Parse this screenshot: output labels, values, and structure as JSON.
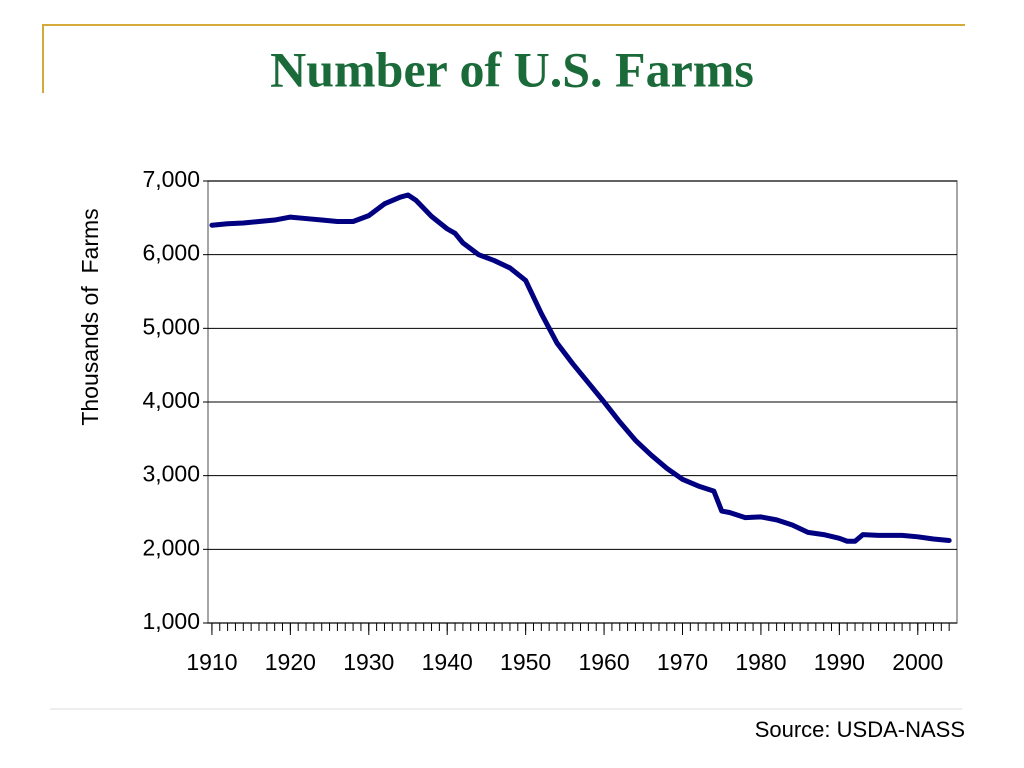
{
  "chart_data": {
    "type": "line",
    "title": "Number of U.S. Farms",
    "ylabel": "Thousands of  Farms",
    "source": "Source: USDA-NASS",
    "x": [
      1910,
      1912,
      1914,
      1916,
      1918,
      1920,
      1922,
      1924,
      1926,
      1928,
      1930,
      1932,
      1934,
      1935,
      1936,
      1938,
      1940,
      1941,
      1942,
      1944,
      1946,
      1948,
      1950,
      1952,
      1954,
      1956,
      1958,
      1960,
      1962,
      1964,
      1966,
      1968,
      1970,
      1972,
      1974,
      1975,
      1976,
      1978,
      1980,
      1982,
      1984,
      1986,
      1988,
      1990,
      1991,
      1992,
      1993,
      1995,
      1998,
      2000,
      2002,
      2004
    ],
    "series": [
      {
        "name": "Farms",
        "color": "#000080",
        "values": [
          6400,
          6420,
          6430,
          6450,
          6470,
          6510,
          6490,
          6470,
          6450,
          6450,
          6530,
          6690,
          6780,
          6810,
          6740,
          6520,
          6350,
          6290,
          6160,
          6000,
          5920,
          5820,
          5650,
          5200,
          4800,
          4520,
          4260,
          4000,
          3730,
          3480,
          3280,
          3100,
          2950,
          2860,
          2790,
          2520,
          2500,
          2430,
          2440,
          2400,
          2330,
          2230,
          2200,
          2150,
          2110,
          2110,
          2200,
          2190,
          2190,
          2170,
          2140,
          2120
        ]
      }
    ],
    "xlim": [
      1909.5,
      2005
    ],
    "xticks": [
      1910,
      1920,
      1930,
      1940,
      1950,
      1960,
      1970,
      1980,
      1990,
      2000
    ],
    "minor_xticks": [
      1910,
      1911,
      1912,
      1913,
      1914,
      1915,
      1916,
      1917,
      1918,
      1919,
      1920,
      1921,
      1922,
      1923,
      1924,
      1925,
      1926,
      1927,
      1928,
      1929,
      1930,
      1931,
      1932,
      1933,
      1934,
      1935,
      1936,
      1937,
      1938,
      1939,
      1940,
      1941,
      1942,
      1943,
      1944,
      1945,
      1946,
      1947,
      1948,
      1949,
      1950,
      1951,
      1952,
      1953,
      1954,
      1955,
      1956,
      1957,
      1958,
      1959,
      1960,
      1961,
      1962,
      1963,
      1964,
      1965,
      1966,
      1967,
      1968,
      1969,
      1970,
      1971,
      1972,
      1973,
      1974,
      1975,
      1976,
      1977,
      1978,
      1979,
      1980,
      1981,
      1982,
      1983,
      1984,
      1985,
      1986,
      1987,
      1988,
      1989,
      1990,
      1991,
      1992,
      1993,
      1994,
      1995,
      1996,
      1997,
      1998,
      1999,
      2000,
      2001,
      2002,
      2003,
      2004
    ],
    "ylim": [
      1000,
      7000
    ],
    "yticks": [
      {
        "value": 1000,
        "label": "1,000"
      },
      {
        "value": 2000,
        "label": "2,000"
      },
      {
        "value": 3000,
        "label": "3,000"
      },
      {
        "value": 4000,
        "label": "4,000"
      },
      {
        "value": 5000,
        "label": "5,000"
      },
      {
        "value": 6000,
        "label": "6,000"
      },
      {
        "value": 7000,
        "label": "7,000"
      }
    ],
    "grid": true
  }
}
